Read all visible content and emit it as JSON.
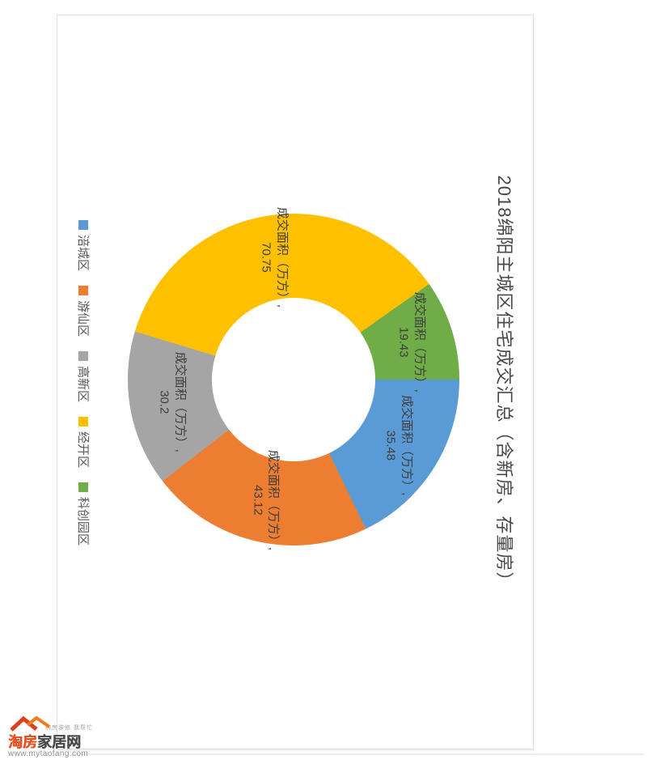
{
  "chart_data": {
    "type": "pie",
    "subtype": "donut",
    "title": "2018绵阳主城区住宅成交汇总（含新房、存量房）",
    "series_name": "成交面积（万方）",
    "categories": [
      "涪城区",
      "游仙区",
      "高新区",
      "经开区",
      "科创园区"
    ],
    "values": [
      35.48,
      43.12,
      30.2,
      70.75,
      19.43
    ],
    "colors": [
      "#5B9BD5",
      "#ED7D31",
      "#A5A5A5",
      "#FFC000",
      "#70AD47"
    ],
    "label_format": "{series_name}, {value}",
    "legend_position": "bottom",
    "start_angle_deg": 0,
    "hole_ratio": 0.49,
    "canvas_rotation_deg": 90
  },
  "watermark": {
    "brand_red": "淘房",
    "brand_gray": "家居网",
    "tagline": "购房装修 我帮忙",
    "url": "www.mytaofang.com",
    "roof_color_left": "#d9441f",
    "roof_color_right": "#f07a1f"
  }
}
